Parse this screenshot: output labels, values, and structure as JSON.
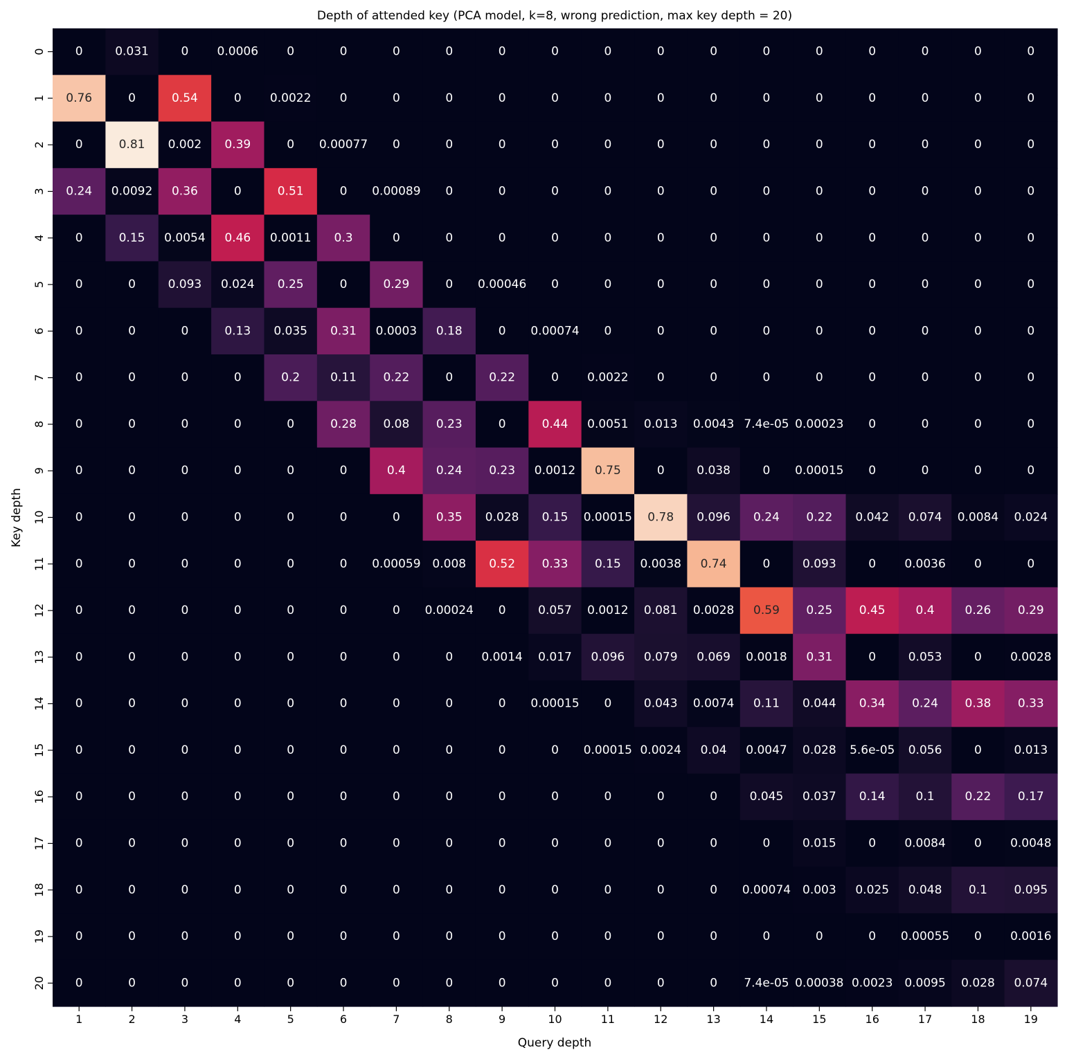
{
  "chart_data": {
    "type": "heatmap",
    "title": "Depth of attended key (PCA model, k=8, wrong prediction, max key depth = 20)",
    "xlabel": "Query depth",
    "ylabel": "Key depth",
    "x_categories": [
      "1",
      "2",
      "3",
      "4",
      "5",
      "6",
      "7",
      "8",
      "9",
      "10",
      "11",
      "12",
      "13",
      "14",
      "15",
      "16",
      "17",
      "18",
      "19"
    ],
    "y_categories": [
      "0",
      "1",
      "2",
      "3",
      "4",
      "5",
      "6",
      "7",
      "8",
      "9",
      "10",
      "11",
      "12",
      "13",
      "14",
      "15",
      "16",
      "17",
      "18",
      "19",
      "20"
    ],
    "value_range": [
      0,
      0.81
    ],
    "colormap": "rocket",
    "cell_labels": [
      [
        "0",
        "0.031",
        "0",
        "0.0006",
        "0",
        "0",
        "0",
        "0",
        "0",
        "0",
        "0",
        "0",
        "0",
        "0",
        "0",
        "0",
        "0",
        "0",
        "0"
      ],
      [
        "0.76",
        "0",
        "0.54",
        "0",
        "0.0022",
        "0",
        "0",
        "0",
        "0",
        "0",
        "0",
        "0",
        "0",
        "0",
        "0",
        "0",
        "0",
        "0",
        "0"
      ],
      [
        "0",
        "0.81",
        "0.002",
        "0.39",
        "0",
        "0.00077",
        "0",
        "0",
        "0",
        "0",
        "0",
        "0",
        "0",
        "0",
        "0",
        "0",
        "0",
        "0",
        "0"
      ],
      [
        "0.24",
        "0.0092",
        "0.36",
        "0",
        "0.51",
        "0",
        "0.00089",
        "0",
        "0",
        "0",
        "0",
        "0",
        "0",
        "0",
        "0",
        "0",
        "0",
        "0",
        "0"
      ],
      [
        "0",
        "0.15",
        "0.0054",
        "0.46",
        "0.0011",
        "0.3",
        "0",
        "0",
        "0",
        "0",
        "0",
        "0",
        "0",
        "0",
        "0",
        "0",
        "0",
        "0",
        "0"
      ],
      [
        "0",
        "0",
        "0.093",
        "0.024",
        "0.25",
        "0",
        "0.29",
        "0",
        "0.00046",
        "0",
        "0",
        "0",
        "0",
        "0",
        "0",
        "0",
        "0",
        "0",
        "0"
      ],
      [
        "0",
        "0",
        "0",
        "0.13",
        "0.035",
        "0.31",
        "0.0003",
        "0.18",
        "0",
        "0.00074",
        "0",
        "0",
        "0",
        "0",
        "0",
        "0",
        "0",
        "0",
        "0"
      ],
      [
        "0",
        "0",
        "0",
        "0",
        "0.2",
        "0.11",
        "0.22",
        "0",
        "0.22",
        "0",
        "0.0022",
        "0",
        "0",
        "0",
        "0",
        "0",
        "0",
        "0",
        "0"
      ],
      [
        "0",
        "0",
        "0",
        "0",
        "0",
        "0.28",
        "0.08",
        "0.23",
        "0",
        "0.44",
        "0.0051",
        "0.013",
        "0.0043",
        "7.4e-05",
        "0.00023",
        "0",
        "0",
        "0",
        "0"
      ],
      [
        "0",
        "0",
        "0",
        "0",
        "0",
        "0",
        "0.4",
        "0.24",
        "0.23",
        "0.0012",
        "0.75",
        "0",
        "0.038",
        "0",
        "0.00015",
        "0",
        "0",
        "0",
        "0"
      ],
      [
        "0",
        "0",
        "0",
        "0",
        "0",
        "0",
        "0",
        "0.35",
        "0.028",
        "0.15",
        "0.00015",
        "0.78",
        "0.096",
        "0.24",
        "0.22",
        "0.042",
        "0.074",
        "0.0084",
        "0.024"
      ],
      [
        "0",
        "0",
        "0",
        "0",
        "0",
        "0",
        "0.00059",
        "0.008",
        "0.52",
        "0.33",
        "0.15",
        "0.0038",
        "0.74",
        "0",
        "0.093",
        "0",
        "0.0036",
        "0",
        "0"
      ],
      [
        "0",
        "0",
        "0",
        "0",
        "0",
        "0",
        "0",
        "0.00024",
        "0",
        "0.057",
        "0.0012",
        "0.081",
        "0.0028",
        "0.59",
        "0.25",
        "0.45",
        "0.4",
        "0.26",
        "0.29"
      ],
      [
        "0",
        "0",
        "0",
        "0",
        "0",
        "0",
        "0",
        "0",
        "0.0014",
        "0.017",
        "0.096",
        "0.079",
        "0.069",
        "0.0018",
        "0.31",
        "0",
        "0.053",
        "0",
        "0.0028"
      ],
      [
        "0",
        "0",
        "0",
        "0",
        "0",
        "0",
        "0",
        "0",
        "0",
        "0.00015",
        "0",
        "0.043",
        "0.0074",
        "0.11",
        "0.044",
        "0.34",
        "0.24",
        "0.38",
        "0.33"
      ],
      [
        "0",
        "0",
        "0",
        "0",
        "0",
        "0",
        "0",
        "0",
        "0",
        "0",
        "0.00015",
        "0.0024",
        "0.04",
        "0.0047",
        "0.028",
        "5.6e-05",
        "0.056",
        "0",
        "0.013"
      ],
      [
        "0",
        "0",
        "0",
        "0",
        "0",
        "0",
        "0",
        "0",
        "0",
        "0",
        "0",
        "0",
        "0",
        "0.045",
        "0.037",
        "0.14",
        "0.1",
        "0.22",
        "0.17"
      ],
      [
        "0",
        "0",
        "0",
        "0",
        "0",
        "0",
        "0",
        "0",
        "0",
        "0",
        "0",
        "0",
        "0",
        "0",
        "0.015",
        "0",
        "0.0084",
        "0",
        "0.0048"
      ],
      [
        "0",
        "0",
        "0",
        "0",
        "0",
        "0",
        "0",
        "0",
        "0",
        "0",
        "0",
        "0",
        "0",
        "0.00074",
        "0.003",
        "0.025",
        "0.048",
        "0.1",
        "0.095"
      ],
      [
        "0",
        "0",
        "0",
        "0",
        "0",
        "0",
        "0",
        "0",
        "0",
        "0",
        "0",
        "0",
        "0",
        "0",
        "0",
        "0",
        "0.00055",
        "0",
        "0.0016"
      ],
      [
        "0",
        "0",
        "0",
        "0",
        "0",
        "0",
        "0",
        "0",
        "0",
        "0",
        "0",
        "0",
        "0",
        "7.4e-05",
        "0.00038",
        "0.0023",
        "0.0095",
        "0.028",
        "0.074"
      ]
    ]
  }
}
